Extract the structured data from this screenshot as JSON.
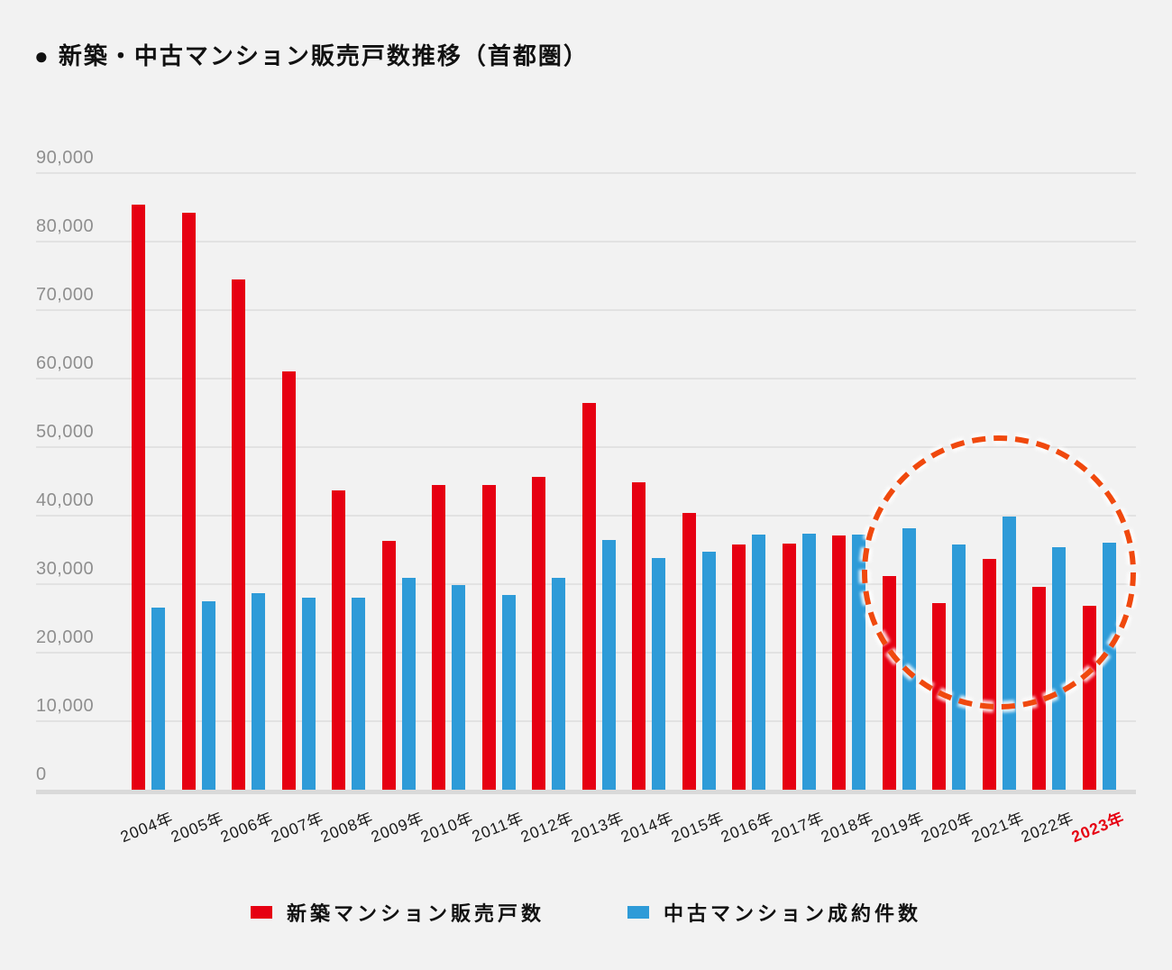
{
  "page": {
    "background": "#F2F2F2"
  },
  "title": "● 新築・中古マンション販売戸数推移（首都圏）",
  "chart_data": {
    "type": "bar",
    "title": "新築・中古マンション販売戸数推移（首都圏）",
    "categories": [
      "2004年",
      "2005年",
      "2006年",
      "2007年",
      "2008年",
      "2009年",
      "2010年",
      "2011年",
      "2012年",
      "2013年",
      "2014年",
      "2015年",
      "2016年",
      "2017年",
      "2018年",
      "2019年",
      "2020年",
      "2021年",
      "2022年",
      "2023年"
    ],
    "series": [
      {
        "name": "新築マンション販売戸数",
        "color": "#E60012",
        "values": [
          85429,
          84148,
          74463,
          61021,
          43733,
          36376,
          44535,
          44499,
          45602,
          56478,
          44913,
          40449,
          35772,
          35898,
          37132,
          31238,
          27228,
          33636,
          29569,
          26886
        ]
      },
      {
        "name": "中古マンション成約件数",
        "color": "#2E9BD8",
        "values": [
          26550,
          27539,
          28661,
          27986,
          28036,
          30929,
          29925,
          28446,
          30963,
          36432,
          33798,
          34776,
          37189,
          37329,
          37217,
          38109,
          35825,
          39812,
          35429,
          35987
        ]
      }
    ],
    "xlabel": "",
    "ylabel": "",
    "ylim": [
      0,
      90000
    ],
    "ytick_interval": 10000,
    "ytick_labels": [
      "0",
      "10,000",
      "20,000",
      "30,000",
      "40,000",
      "50,000",
      "60,000",
      "70,000",
      "80,000",
      "90,000"
    ],
    "grid": true,
    "legend_position": "bottom",
    "x_highlight": {
      "category": "2023年",
      "color": "#E60012"
    },
    "annotation": {
      "type": "dashed-circle",
      "from_category": "2019年",
      "to_category": "2023年",
      "color": "#F0490E"
    }
  }
}
